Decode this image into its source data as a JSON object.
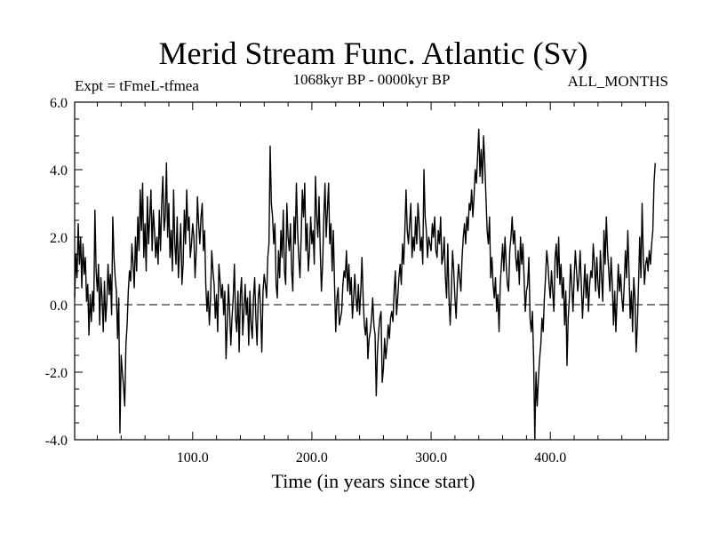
{
  "chart_data": {
    "type": "line",
    "title": "Merid Stream Func. Atlantic (Sv)",
    "subtitle_left": "Expt = tFmeL-tfmea",
    "subtitle_center": "1068kyr BP - 0000kyr BP",
    "subtitle_right": "ALL_MONTHS",
    "xlabel": "Time (in years since start)",
    "ylabel": "",
    "xlim": [
      1,
      499
    ],
    "ylim": [
      -4.0,
      6.0
    ],
    "x_ticks": [
      100,
      200,
      300,
      400
    ],
    "x_tick_labels": [
      "100.0",
      "200.0",
      "300.0",
      "400.0"
    ],
    "y_ticks": [
      -4,
      -2,
      0,
      2,
      4,
      6
    ],
    "y_tick_labels": [
      "-4.0",
      "-2.0",
      "0.0",
      "2.0",
      "4.0",
      "6.0"
    ],
    "reference_line": {
      "y": 0,
      "style": "dashed"
    },
    "series": [
      {
        "name": "Merid Stream Func. Atlantic",
        "x_start": 1,
        "x_step": 1,
        "values": [
          0.2,
          1.5,
          0.8,
          2.4,
          1.2,
          2.0,
          0.5,
          1.8,
          0.9,
          1.4,
          0.1,
          0.6,
          -0.9,
          0.3,
          -0.5,
          0.4,
          -0.2,
          2.8,
          1.0,
          0.4,
          1.2,
          -0.6,
          0.8,
          0.2,
          -0.8,
          0.7,
          -0.5,
          0.1,
          1.2,
          0.3,
          0.9,
          -0.3,
          2.6,
          1.4,
          0.8,
          0.4,
          -1.0,
          0.2,
          -3.8,
          -1.5,
          -2.0,
          -2.4,
          -3.0,
          -1.2,
          -0.6,
          0.4,
          1.0,
          0.7,
          1.8,
          1.2,
          0.5,
          2.0,
          1.0,
          2.6,
          1.6,
          3.4,
          2.2,
          3.6,
          1.4,
          2.4,
          1.0,
          3.2,
          1.8,
          2.6,
          3.4,
          1.6,
          2.8,
          2.2,
          1.4,
          2.0,
          1.2,
          2.8,
          1.6,
          3.0,
          3.8,
          2.2,
          2.6,
          4.2,
          2.0,
          3.0,
          1.4,
          2.2,
          1.0,
          3.4,
          1.8,
          1.2,
          2.6,
          0.8,
          1.6,
          2.4,
          0.6,
          1.2,
          2.8,
          1.8,
          3.4,
          2.2,
          2.6,
          1.4,
          1.8,
          2.4,
          2.0,
          0.8,
          1.6,
          3.2,
          2.4,
          1.8,
          2.6,
          3.0,
          1.6,
          2.2,
          0.6,
          -0.2,
          0.4,
          -0.6,
          0.2,
          1.6,
          1.0,
          0.6,
          -0.4,
          0.3,
          -0.8,
          1.2,
          0.7,
          0.2,
          0.6,
          -0.3,
          0.4,
          -1.6,
          -0.6,
          0.6,
          -0.2,
          -1.2,
          -0.4,
          0.2,
          1.2,
          -0.4,
          -0.8,
          0.4,
          -1.4,
          0.3,
          0.8,
          -0.9,
          -0.2,
          0.6,
          -0.3,
          0.2,
          -1.2,
          0.4,
          -0.6,
          -1.0,
          0.2,
          0.8,
          -0.4,
          -1.2,
          0.2,
          0.6,
          -0.2,
          -1.4,
          0.4,
          0.9,
          0.6,
          0.2,
          1.4,
          1.8,
          4.7,
          3.0,
          2.6,
          1.8,
          2.4,
          0.6,
          0.2,
          1.6,
          0.8,
          2.2,
          1.4,
          2.8,
          1.0,
          0.6,
          3.0,
          2.0,
          1.6,
          2.4,
          1.0,
          0.4,
          2.6,
          1.8,
          3.6,
          2.2,
          1.4,
          0.8,
          2.0,
          3.4,
          2.6,
          3.6,
          1.6,
          2.4,
          1.0,
          1.6,
          2.6,
          1.8,
          2.2,
          1.2,
          3.8,
          2.6,
          2.0,
          3.2,
          1.6,
          0.4,
          1.2,
          2.6,
          3.6,
          2.0,
          2.8,
          3.6,
          1.8,
          2.4,
          1.0,
          2.2,
          0.6,
          -0.8,
          0.2,
          0.5,
          -0.6,
          -0.4,
          -0.2,
          0.6,
          1.0,
          0.8,
          1.6,
          0.4,
          1.2,
          0.3,
          0.8,
          -0.4,
          0.2,
          0.9,
          0.2,
          -0.2,
          0.6,
          -0.3,
          0.4,
          1.4,
          0.2,
          -0.6,
          -0.9,
          -0.4,
          -1.6,
          -1.0,
          -0.8,
          -0.4,
          0.2,
          -0.6,
          -0.9,
          -2.7,
          -1.4,
          -0.8,
          -0.4,
          -0.2,
          -2.3,
          -1.9,
          -1.0,
          -1.6,
          -1.2,
          -0.6,
          -1.0,
          -0.4,
          -0.2,
          -0.5,
          0.4,
          1.0,
          -0.3,
          0.2,
          0.8,
          1.2,
          0.6,
          1.8,
          1.2,
          2.2,
          3.4,
          2.2,
          1.8,
          2.4,
          3.0,
          1.4,
          2.0,
          1.6,
          2.6,
          1.8,
          3.0,
          2.4,
          1.6,
          2.0,
          1.2,
          4.0,
          2.6,
          2.2,
          1.4,
          2.0,
          1.8,
          1.6,
          2.4,
          2.0,
          2.6,
          1.6,
          1.4,
          2.2,
          1.8,
          2.6,
          1.2,
          1.4,
          2.0,
          0.8,
          0.2,
          1.8,
          0.2,
          -0.6,
          0.4,
          1.6,
          1.0,
          0.2,
          -0.4,
          0.6,
          1.2,
          0.8,
          0.4,
          1.4,
          2.0,
          2.4,
          1.8,
          2.6,
          2.2,
          3.0,
          2.8,
          3.4,
          2.6,
          3.2,
          4.0,
          3.6,
          4.4,
          5.2,
          3.8,
          4.6,
          3.6,
          5.0,
          4.2,
          3.2,
          2.2,
          1.8,
          2.6,
          0.8,
          1.4,
          0.6,
          0.2,
          0.8,
          -0.2,
          0.3,
          -0.8,
          0.6,
          1.2,
          1.8,
          1.0,
          2.0,
          1.2,
          0.6,
          0.4,
          1.6,
          2.0,
          2.6,
          1.8,
          2.2,
          1.4,
          1.0,
          1.6,
          0.6,
          2.0,
          1.2,
          1.8,
          0.8,
          -0.2,
          0.4,
          0.6,
          1.4,
          -0.4,
          -0.8,
          -0.2,
          -1.6,
          -4.0,
          -2.0,
          -3.0,
          -2.2,
          -1.6,
          -1.2,
          -0.4,
          -0.8,
          0.2,
          0.8,
          1.6,
          1.2,
          0.6,
          0.2,
          1.0,
          0.4,
          -0.2,
          1.4,
          1.8,
          0.8,
          2.0,
          0.6,
          1.2,
          0.2,
          0.8,
          -0.6,
          0.4,
          -1.8,
          -0.4,
          0.2,
          1.2,
          0.6,
          -0.2,
          0.8,
          1.6,
          1.0,
          0.4,
          0.8,
          1.6,
          0.6,
          -0.4,
          0.4,
          1.2,
          0.2,
          0.9,
          -0.2,
          0.6,
          1.0,
          0.8,
          1.8,
          1.2,
          0.4,
          1.4,
          0.6,
          0.2,
          1.6,
          0.8,
          0.1,
          2.2,
          1.2,
          2.6,
          1.6,
          1.0,
          0.4,
          1.4,
          0.6,
          -0.6,
          0.4,
          -0.8,
          0.2,
          1.2,
          0.4,
          0.9,
          0.2,
          -0.2,
          0.6,
          1.6,
          0.8,
          2.2,
          1.0,
          -0.4,
          0.4,
          -0.8,
          0.8,
          0.2,
          -1.4,
          -0.6,
          0.6,
          2.0,
          0.8,
          3.0,
          1.4,
          0.6,
          1.2,
          1.4,
          1.0,
          1.6,
          1.2,
          1.8,
          2.2,
          3.6,
          4.2
        ]
      }
    ]
  }
}
